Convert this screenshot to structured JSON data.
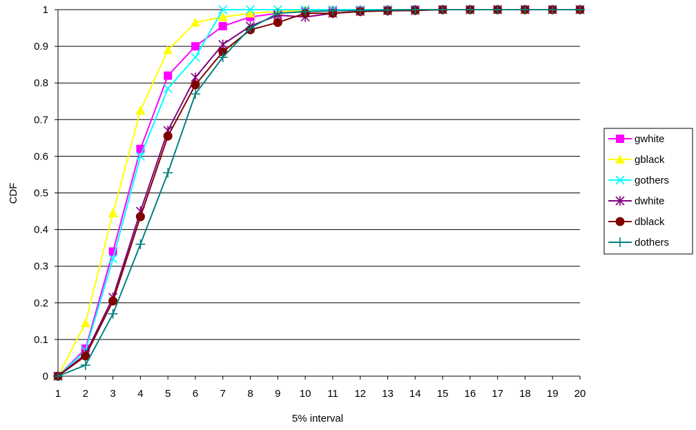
{
  "chart_data": {
    "type": "line",
    "title": "",
    "xlabel": "5% interval",
    "ylabel": "CDF",
    "x": [
      1,
      2,
      3,
      4,
      5,
      6,
      7,
      8,
      9,
      10,
      11,
      12,
      13,
      14,
      15,
      16,
      17,
      18,
      19,
      20
    ],
    "x_ticks": [
      "1",
      "2",
      "3",
      "4",
      "5",
      "6",
      "7",
      "8",
      "9",
      "10",
      "11",
      "12",
      "13",
      "14",
      "15",
      "16",
      "17",
      "18",
      "19",
      "20"
    ],
    "ylim": [
      0,
      1
    ],
    "y_ticks": [
      "0",
      "0.1",
      "0.2",
      "0.3",
      "0.4",
      "0.5",
      "0.6",
      "0.7",
      "0.8",
      "0.9",
      "1"
    ],
    "grid": "horizontal",
    "legend_position": "right",
    "series": [
      {
        "name": "gwhite",
        "color": "#FF00FF",
        "marker": "square",
        "values": [
          0,
          0.075,
          0.34,
          0.62,
          0.82,
          0.9,
          0.955,
          0.98,
          0.99,
          0.995,
          0.997,
          0.998,
          0.999,
          1,
          1,
          1,
          1,
          1,
          1,
          1
        ]
      },
      {
        "name": "gblack",
        "color": "#FFFF00",
        "marker": "triangle",
        "values": [
          0,
          0.145,
          0.445,
          0.725,
          0.89,
          0.965,
          0.98,
          0.99,
          0.995,
          0.998,
          0.999,
          1,
          1,
          1,
          1,
          1,
          1,
          1,
          1,
          1
        ]
      },
      {
        "name": "gothers",
        "color": "#00FFFF",
        "marker": "x",
        "values": [
          0,
          0.07,
          0.32,
          0.6,
          0.785,
          0.87,
          1.0,
          1.0,
          1.0,
          1.0,
          1,
          1,
          1,
          1,
          1,
          1,
          1,
          1,
          1,
          1
        ]
      },
      {
        "name": "dwhite",
        "color": "#800080",
        "marker": "star",
        "values": [
          0,
          0.06,
          0.215,
          0.45,
          0.67,
          0.815,
          0.905,
          0.955,
          0.985,
          0.98,
          0.99,
          0.995,
          0.997,
          0.998,
          1,
          1,
          1,
          1,
          1,
          1
        ]
      },
      {
        "name": "dblack",
        "color": "#800000",
        "marker": "circle",
        "values": [
          0,
          0.055,
          0.205,
          0.435,
          0.655,
          0.795,
          0.885,
          0.945,
          0.965,
          0.99,
          0.99,
          0.995,
          0.997,
          0.998,
          1,
          1,
          1,
          1,
          1,
          1
        ]
      },
      {
        "name": "dothers",
        "color": "#008080",
        "marker": "plus",
        "values": [
          0,
          0.03,
          0.17,
          0.36,
          0.555,
          0.77,
          0.87,
          0.95,
          0.99,
          0.995,
          0.997,
          0.998,
          0.999,
          1,
          1,
          1,
          1,
          1,
          1,
          1
        ]
      }
    ]
  }
}
